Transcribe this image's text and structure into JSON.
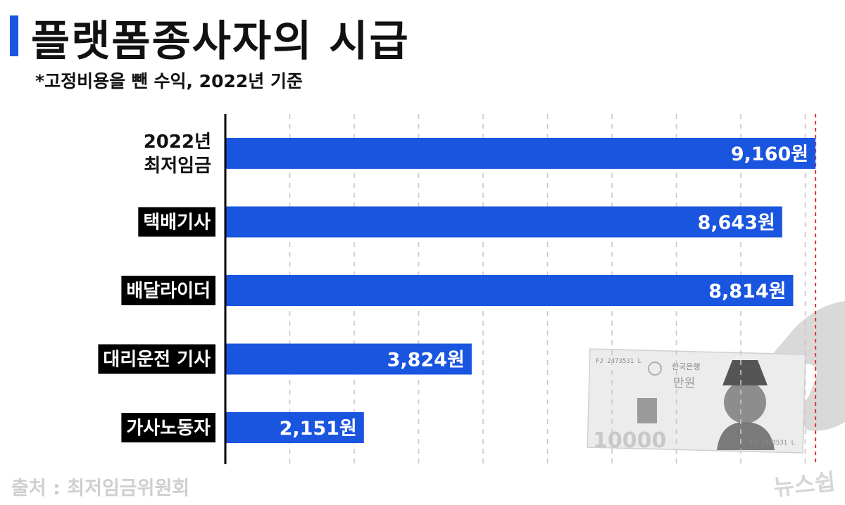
{
  "title": "플랫폼종사자의 시급",
  "subtitle": "*고정비용을 뺀 수익, 2022년 기준",
  "source": "출처 : 최저임금위원회",
  "logo": "뉴스쉽",
  "banknote": {
    "top_text": "FJ 2473531 L",
    "issuer": "한국은행",
    "denomination_label": "만원",
    "value_text": "10000",
    "serial": "FJ 2473531 L"
  },
  "colors": {
    "title_bar": "#1a55e0",
    "bar": "#1a55e0",
    "bar_value_text": "#ffffff",
    "label_bg": "#000000",
    "label_text": "#ffffff",
    "reference_line": "#e03030",
    "grid": "#c8c8c8",
    "axis": "#000000"
  },
  "chart_data": {
    "type": "bar",
    "orientation": "horizontal",
    "categories": [
      [
        "2022년",
        "최저임금"
      ],
      [
        "택배기사"
      ],
      [
        "배달라이더"
      ],
      [
        "대리운전 기사"
      ],
      [
        "가사노동자"
      ]
    ],
    "category_highlight": [
      false,
      true,
      true,
      true,
      true
    ],
    "values": [
      9160,
      8643,
      8814,
      3824,
      2151
    ],
    "value_labels": [
      "9,160원",
      "8,643원",
      "8,814원",
      "3,824원",
      "2,151원"
    ],
    "xlim": [
      0,
      10000
    ],
    "grid": "vertical dashed",
    "reference_line": {
      "value": 9160,
      "style": "red dashed"
    }
  }
}
